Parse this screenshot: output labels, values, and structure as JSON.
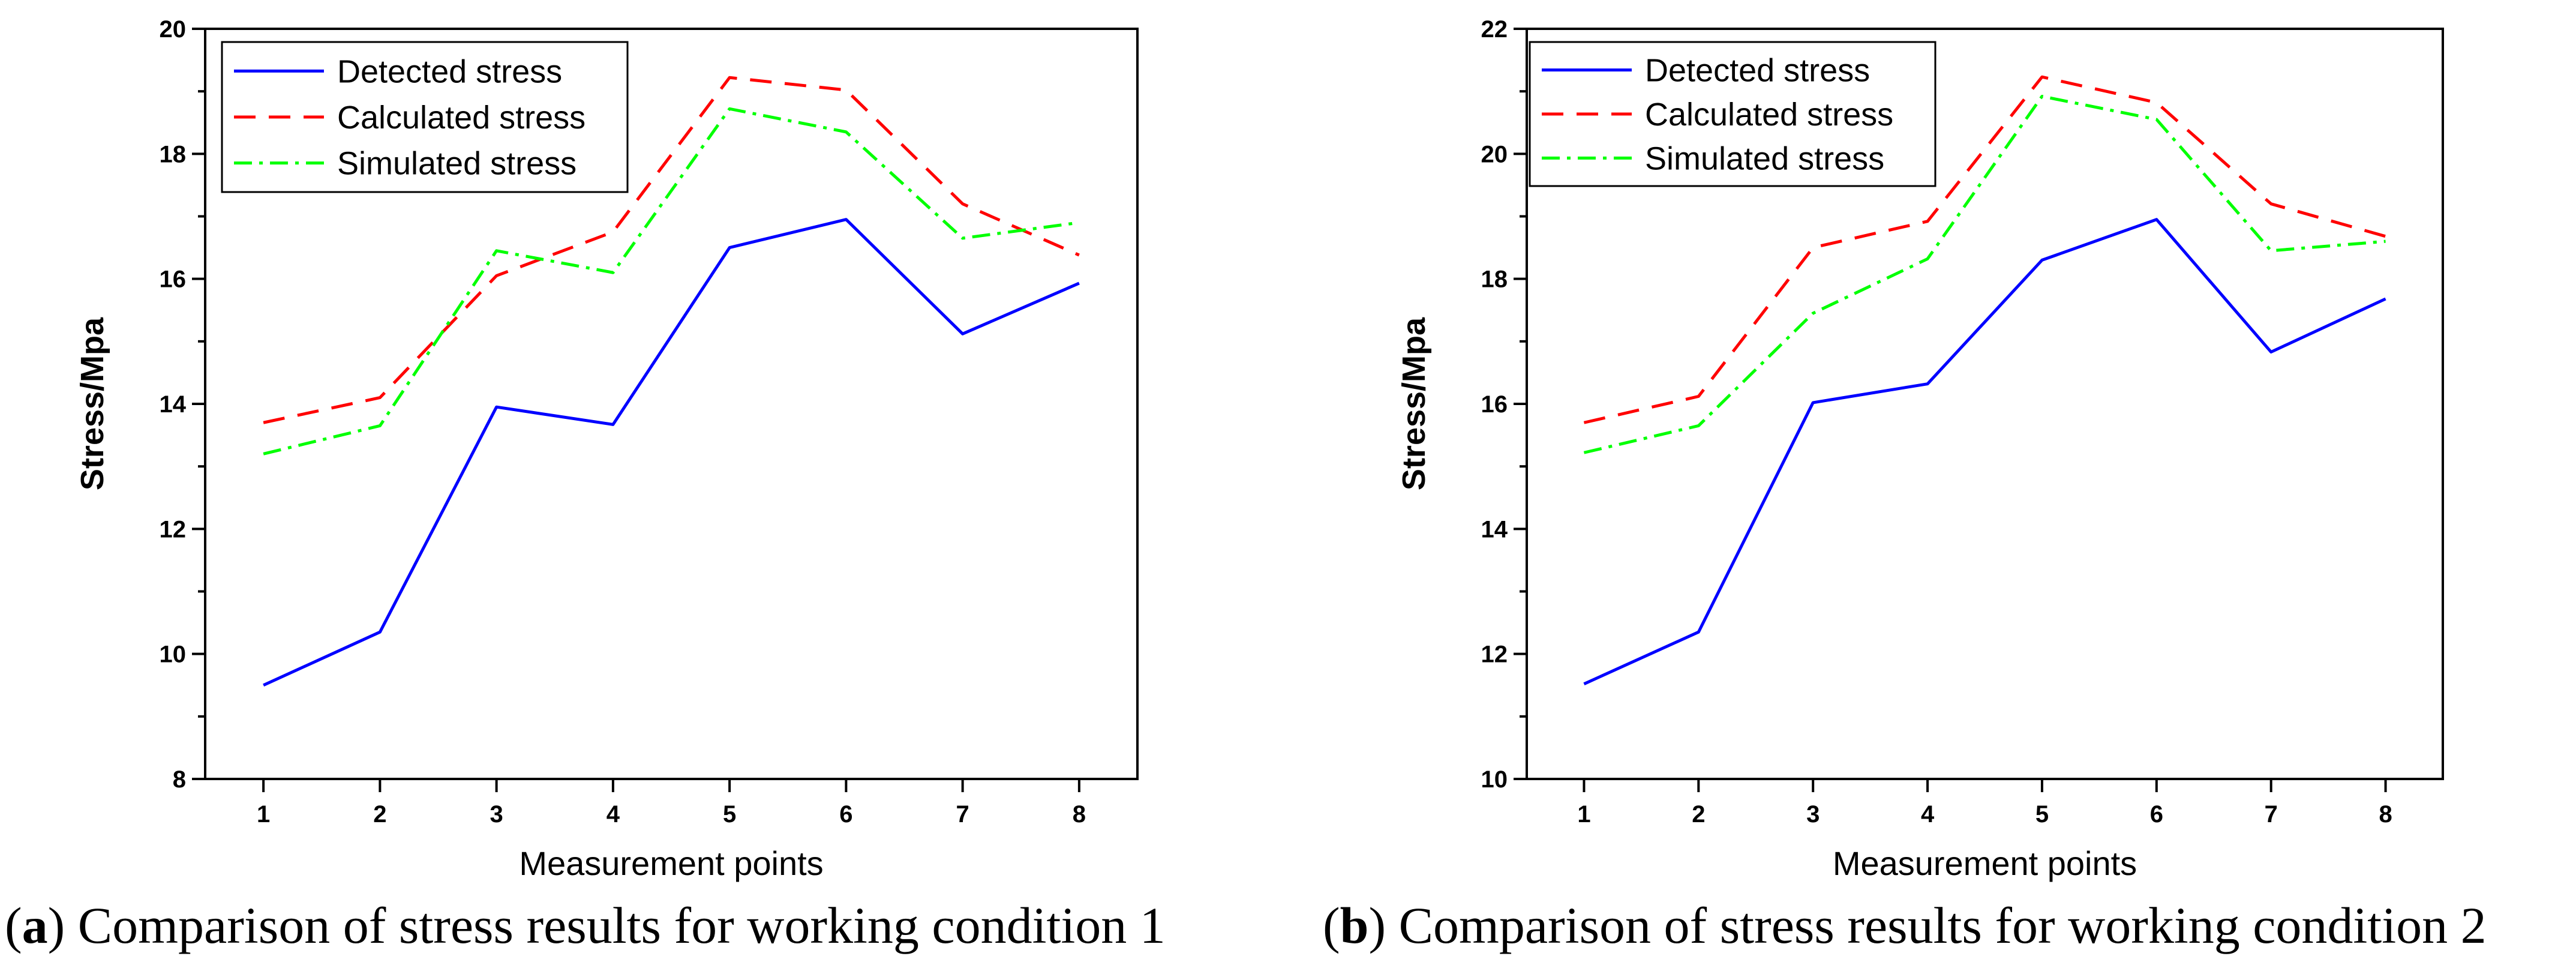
{
  "chart_data": [
    {
      "type": "line",
      "xlabel": "Measurement  points",
      "ylabel": "Stress/Mpa",
      "categories": [
        1,
        2,
        3,
        4,
        5,
        6,
        7,
        8
      ],
      "xlim": [
        0.5,
        8.5
      ],
      "ylim": [
        8,
        20
      ],
      "yticks": [
        8,
        10,
        12,
        14,
        16,
        18,
        20
      ],
      "legend_position": "top-left",
      "series": [
        {
          "name": "Detected stress",
          "color": "#0000ff",
          "style": "solid",
          "values": [
            9.5,
            10.35,
            13.95,
            13.67,
            16.5,
            16.95,
            15.12,
            15.93
          ]
        },
        {
          "name": "Calculated stress",
          "color": "#ff0000",
          "style": "dash",
          "values": [
            13.7,
            14.1,
            16.05,
            16.75,
            19.22,
            19.02,
            17.2,
            16.38
          ]
        },
        {
          "name": "Simulated stress",
          "color": "#00ff00",
          "style": "dashdot",
          "values": [
            13.2,
            13.65,
            16.45,
            16.1,
            18.72,
            18.35,
            16.65,
            16.9
          ]
        }
      ],
      "caption_letter": "a",
      "caption_text": "Comparison of stress results for working condition 1"
    },
    {
      "type": "line",
      "xlabel": "Measurement  points",
      "ylabel": "Stress/Mpa",
      "categories": [
        1,
        2,
        3,
        4,
        5,
        6,
        7,
        8
      ],
      "xlim": [
        0.5,
        8.5
      ],
      "ylim": [
        10,
        22
      ],
      "yticks": [
        10,
        12,
        14,
        16,
        18,
        20,
        22
      ],
      "legend_position": "top-left",
      "series": [
        {
          "name": "Detected stress",
          "color": "#0000ff",
          "style": "solid",
          "values": [
            11.52,
            12.35,
            16.02,
            16.32,
            18.3,
            18.95,
            16.83,
            17.68
          ]
        },
        {
          "name": "Calculated stress",
          "color": "#ff0000",
          "style": "dash",
          "values": [
            15.7,
            16.12,
            18.5,
            18.92,
            21.23,
            20.82,
            19.2,
            18.68
          ]
        },
        {
          "name": "Simulated stress",
          "color": "#00ff00",
          "style": "dashdot",
          "values": [
            15.22,
            15.65,
            17.45,
            18.32,
            20.92,
            20.55,
            18.45,
            18.6
          ]
        }
      ],
      "caption_letter": "b",
      "caption_text": "Comparison of stress results for working condition 2"
    }
  ]
}
